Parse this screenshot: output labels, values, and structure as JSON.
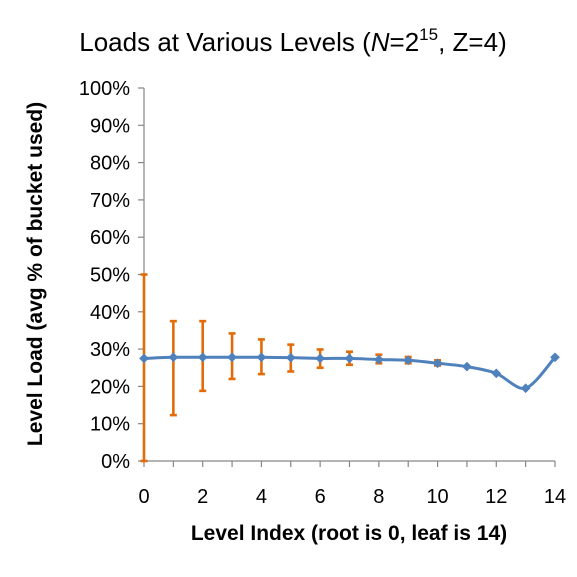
{
  "chart_data": {
    "type": "line",
    "title_parts": {
      "main": "Loads at Various Levels (",
      "n_var": "N",
      "eq_base": "=2",
      "exponent": "15",
      "rest": ", Z=4)"
    },
    "xlabel": "Level Index (root is 0, leaf is 14)",
    "ylabel": "Level Load (avg % of bucket used)",
    "xlim": [
      0,
      14
    ],
    "ylim": [
      0,
      100
    ],
    "x_ticks": [
      0,
      2,
      4,
      6,
      8,
      10,
      12,
      14
    ],
    "y_ticks": [
      "0%",
      "10%",
      "20%",
      "30%",
      "40%",
      "50%",
      "60%",
      "70%",
      "80%",
      "90%",
      "100%"
    ],
    "grid": false,
    "series": [
      {
        "color": "#4f81bd",
        "marker": "diamond",
        "x": [
          0,
          1,
          2,
          3,
          4,
          5,
          6,
          7,
          8,
          9,
          10,
          11,
          12,
          13,
          14
        ],
        "values": [
          27.5,
          27.8,
          27.8,
          27.8,
          27.8,
          27.7,
          27.5,
          27.5,
          27.2,
          27.0,
          26.2,
          25.3,
          23.5,
          19.5,
          27.8
        ]
      }
    ],
    "error_bars": {
      "color": "#e36c09",
      "x": [
        0,
        1,
        2,
        3,
        4,
        5,
        6,
        7,
        8,
        9,
        10
      ],
      "low": [
        0,
        12.3,
        18.8,
        22.0,
        23.3,
        24.0,
        25.0,
        25.8,
        26.2,
        26.2,
        25.6
      ],
      "high": [
        50.0,
        37.5,
        37.5,
        34.2,
        32.6,
        31.2,
        29.9,
        29.3,
        28.5,
        27.9,
        27.0
      ]
    }
  }
}
